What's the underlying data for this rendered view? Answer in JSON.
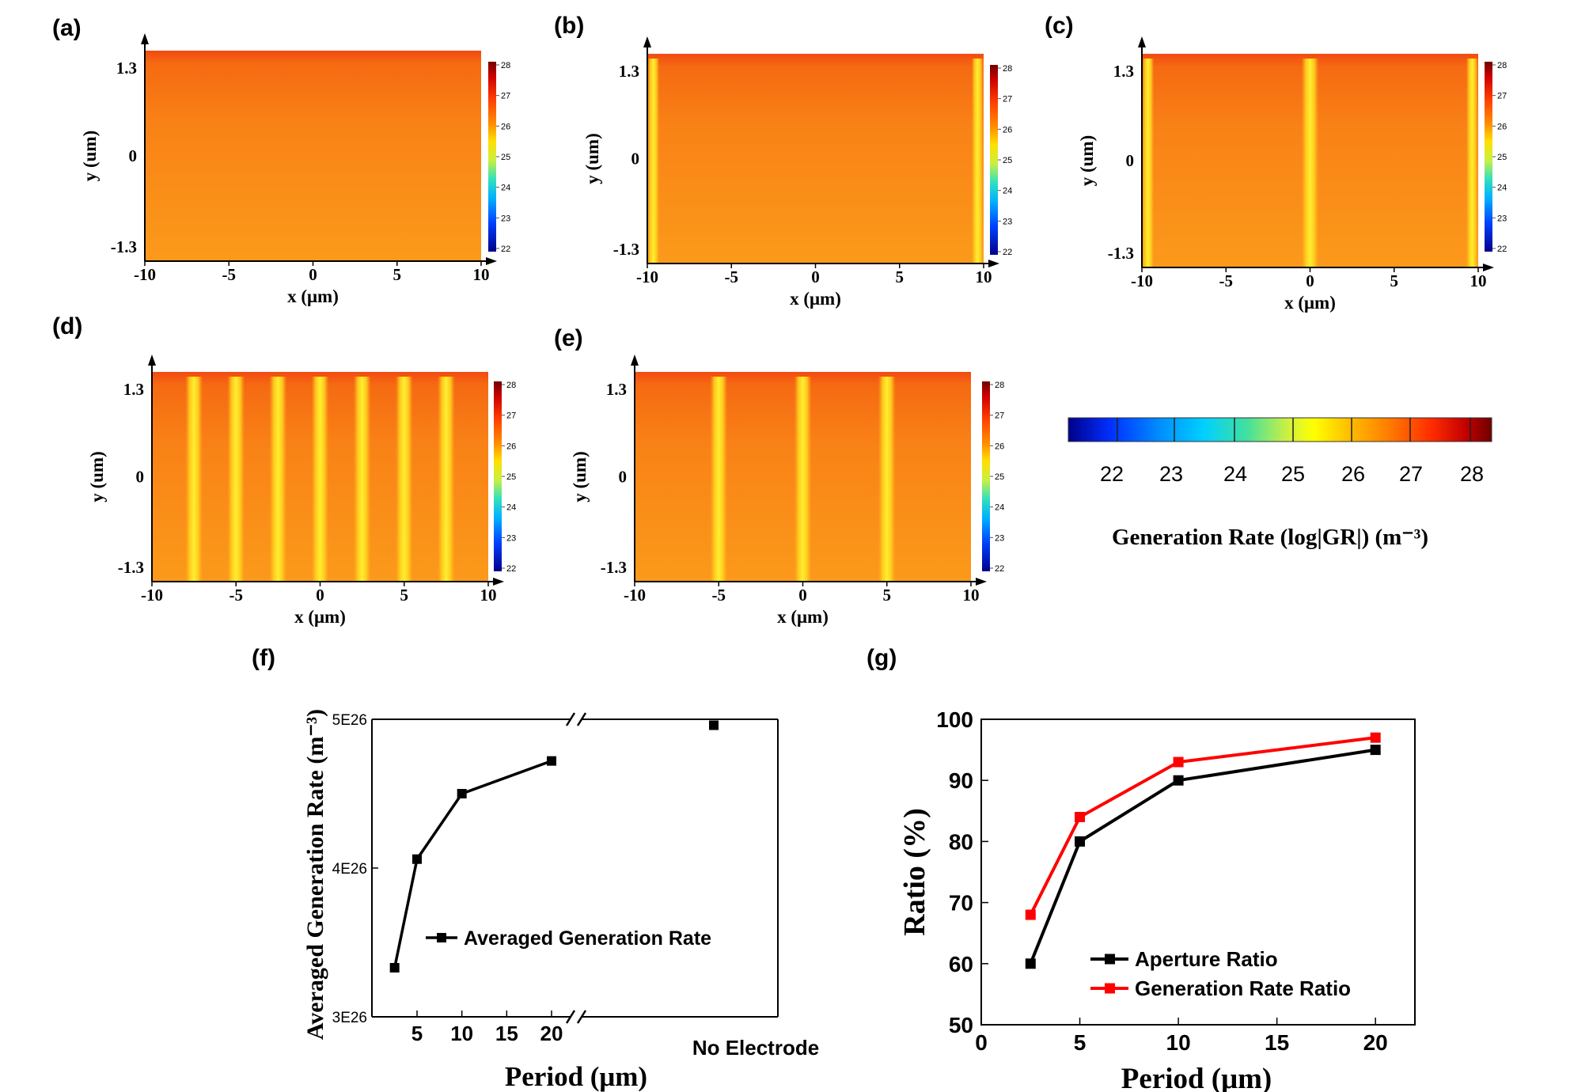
{
  "colorbar": {
    "ticks": [
      "22",
      "23",
      "24",
      "25",
      "26",
      "27",
      "28"
    ],
    "label": "Generation Rate (log|GR|) (m⁻³)",
    "stops": [
      "#00008b",
      "#0000ff",
      "#1e90ff",
      "#00e5ff",
      "#40e0a0",
      "#c8f040",
      "#ffff00",
      "#ffb000",
      "#ff7a00",
      "#ff2a00",
      "#c00000",
      "#700000"
    ]
  },
  "maps": [
    {
      "label": "(a)",
      "xticks": [
        "-10",
        "-5",
        "0",
        "5",
        "10"
      ],
      "yticks": [
        "1.3",
        "0",
        "-1.3"
      ],
      "xlabel": "x (μm)",
      "ylabel": "y (um)",
      "cbticks": [
        "28",
        "27",
        "26",
        "25",
        "24",
        "23",
        "22"
      ],
      "stripes": []
    },
    {
      "label": "(b)",
      "xticks": [
        "-10",
        "-5",
        "0",
        "5",
        "10"
      ],
      "yticks": [
        "1.3",
        "0",
        "-1.3"
      ],
      "xlabel": "x (μm)",
      "ylabel": "y (um)",
      "cbticks": [
        "28",
        "27",
        "26",
        "25",
        "24",
        "23",
        "22"
      ],
      "stripes": [
        -10,
        10
      ]
    },
    {
      "label": "(c)",
      "xticks": [
        "-10",
        "-5",
        "0",
        "5",
        "10"
      ],
      "yticks": [
        "1.3",
        "0",
        "-1.3"
      ],
      "xlabel": "x (μm)",
      "ylabel": "y (um)",
      "cbticks": [
        "28",
        "27",
        "26",
        "25",
        "24",
        "23",
        "22"
      ],
      "stripes": [
        -10,
        0,
        10
      ]
    },
    {
      "label": "(d)",
      "xticks": [
        "-10",
        "-5",
        "0",
        "5",
        "10"
      ],
      "yticks": [
        "1.3",
        "0",
        "-1.3"
      ],
      "xlabel": "x (μm)",
      "ylabel": "y (um)",
      "cbticks": [
        "28",
        "27",
        "26",
        "25",
        "24",
        "23",
        "22"
      ],
      "stripes": [
        -7.5,
        -5,
        -2.5,
        0,
        2.5,
        5,
        7.5
      ]
    },
    {
      "label": "(e)",
      "xticks": [
        "-10",
        "-5",
        "0",
        "5",
        "10"
      ],
      "yticks": [
        "1.3",
        "0",
        "-1.3"
      ],
      "xlabel": "x (μm)",
      "ylabel": "y (um)",
      "cbticks": [
        "28",
        "27",
        "26",
        "25",
        "24",
        "23",
        "22"
      ],
      "stripes": [
        -5,
        0,
        5
      ]
    }
  ],
  "chart_data": [
    {
      "panel": "(f)",
      "type": "line",
      "title": "",
      "xlabel": "Period (μm)",
      "ylabel": "Averaged Generation Rate (m⁻³)",
      "ylim": [
        3e+26,
        5e+26
      ],
      "ytick_labels": [
        "5E26",
        "4E26",
        "3E26"
      ],
      "xtick_labels": [
        "5",
        "10",
        "15",
        "20"
      ],
      "extra_label": "No Electrode",
      "series": [
        {
          "name": "Averaged Generation Rate",
          "color": "#000000",
          "x": [
            2.5,
            5,
            10,
            20
          ],
          "y": [
            3.33e+26,
            4.06e+26,
            4.5e+26,
            4.72e+26
          ]
        }
      ],
      "no_electrode_value": 4.96e+26
    },
    {
      "panel": "(g)",
      "type": "line",
      "title": "",
      "xlabel": "Period (μm)",
      "ylabel": "Ratio (%)",
      "xlim": [
        0,
        22
      ],
      "ylim": [
        50,
        100
      ],
      "xtick_labels": [
        "0",
        "5",
        "10",
        "15",
        "20"
      ],
      "ytick_labels": [
        "100",
        "90",
        "80",
        "70",
        "60",
        "50"
      ],
      "series": [
        {
          "name": "Aperture Ratio",
          "color": "#000000",
          "x": [
            2.5,
            5,
            10,
            20
          ],
          "y": [
            60,
            80,
            90,
            95
          ]
        },
        {
          "name": "Generation Rate Ratio",
          "color": "#ff0000",
          "x": [
            2.5,
            5,
            10,
            20
          ],
          "y": [
            68,
            84,
            93,
            97
          ]
        }
      ]
    }
  ]
}
